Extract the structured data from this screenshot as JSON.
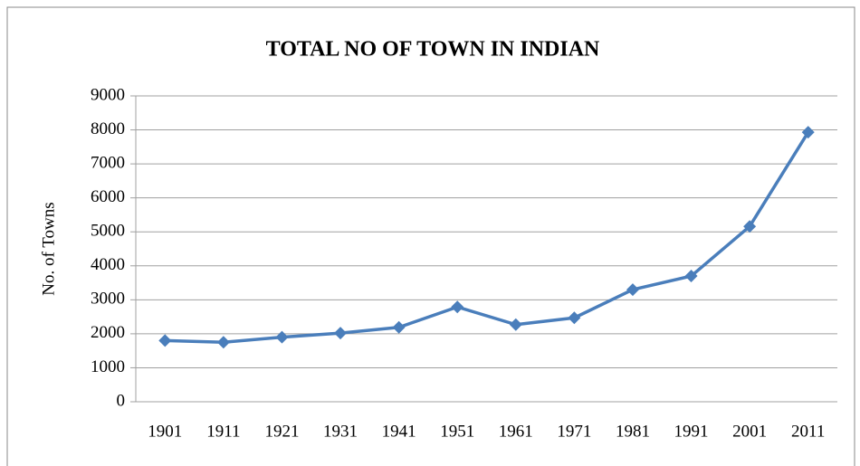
{
  "chart_data": {
    "type": "line",
    "title": "TOTAL NO OF TOWN IN INDIAN",
    "y_label": "No. of Towns",
    "categories": [
      "1901",
      "1911",
      "1921",
      "1931",
      "1941",
      "1951",
      "1961",
      "1971",
      "1981",
      "1991",
      "2001",
      "2011"
    ],
    "series": [
      {
        "name": "No. of Towns",
        "color": "#4a7ebb",
        "values": [
          1800,
          1750,
          1900,
          2020,
          2190,
          2790,
          2270,
          2470,
          3300,
          3700,
          5160,
          7930
        ]
      }
    ],
    "ylim": [
      0,
      9000
    ],
    "yticks": [
      0,
      1000,
      2000,
      3000,
      4000,
      5000,
      6000,
      7000,
      8000,
      9000
    ],
    "grid": true
  }
}
